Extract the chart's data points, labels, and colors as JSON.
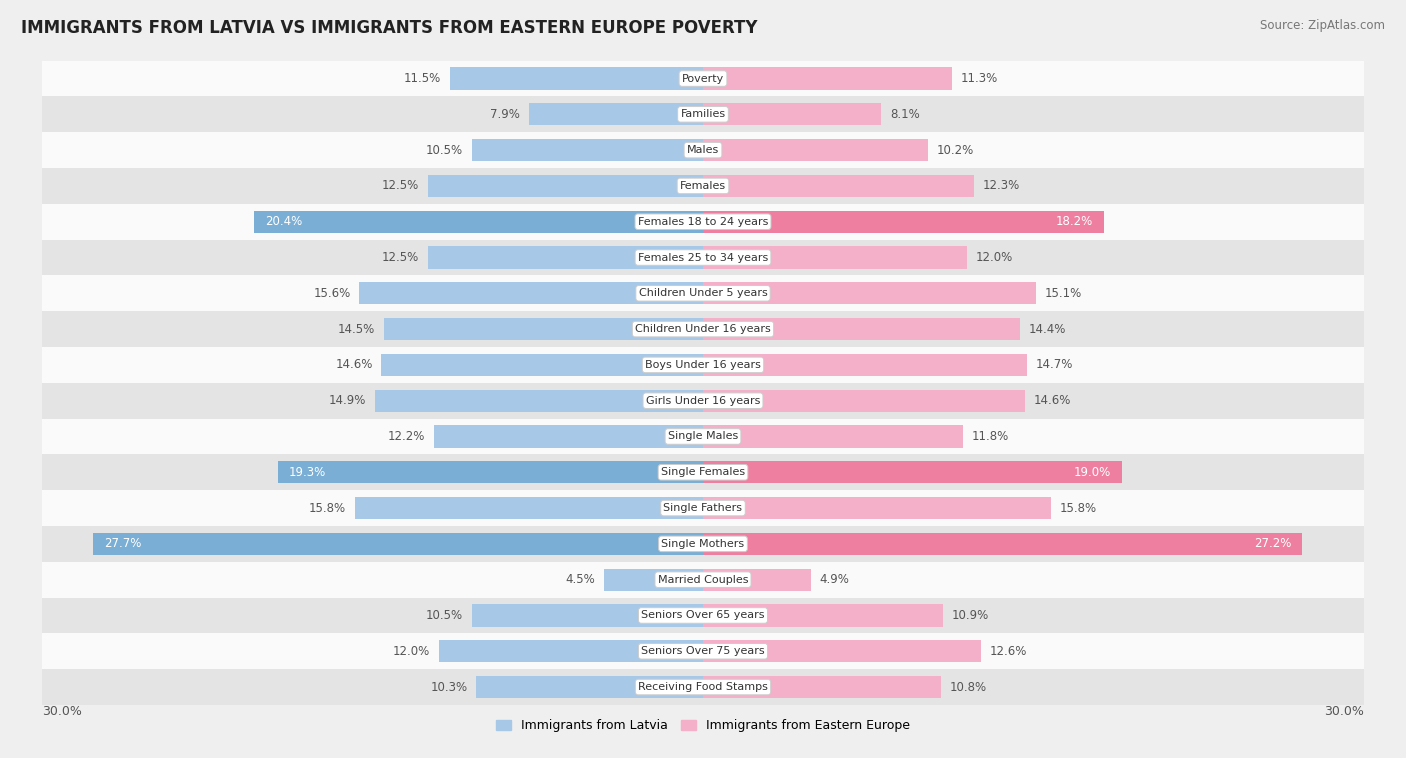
{
  "title": "IMMIGRANTS FROM LATVIA VS IMMIGRANTS FROM EASTERN EUROPE POVERTY",
  "source": "Source: ZipAtlas.com",
  "categories": [
    "Poverty",
    "Families",
    "Males",
    "Females",
    "Females 18 to 24 years",
    "Females 25 to 34 years",
    "Children Under 5 years",
    "Children Under 16 years",
    "Boys Under 16 years",
    "Girls Under 16 years",
    "Single Males",
    "Single Females",
    "Single Fathers",
    "Single Mothers",
    "Married Couples",
    "Seniors Over 65 years",
    "Seniors Over 75 years",
    "Receiving Food Stamps"
  ],
  "latvia_values": [
    11.5,
    7.9,
    10.5,
    12.5,
    20.4,
    12.5,
    15.6,
    14.5,
    14.6,
    14.9,
    12.2,
    19.3,
    15.8,
    27.7,
    4.5,
    10.5,
    12.0,
    10.3
  ],
  "eastern_values": [
    11.3,
    8.1,
    10.2,
    12.3,
    18.2,
    12.0,
    15.1,
    14.4,
    14.7,
    14.6,
    11.8,
    19.0,
    15.8,
    27.2,
    4.9,
    10.9,
    12.6,
    10.8
  ],
  "latvia_color_normal": "#a8c8e8",
  "latvia_color_highlight": "#7aaed4",
  "eastern_color_normal": "#f4b0c8",
  "eastern_color_highlight": "#ee7fa0",
  "bar_height": 0.62,
  "max_value": 30.0,
  "bg_color": "#efefef",
  "row_bg_light": "#fafafa",
  "row_bg_dark": "#e4e4e4",
  "label_color_normal": "#555555",
  "threshold_white_label": 17.5,
  "legend_latvia": "Immigrants from Latvia",
  "legend_eastern": "Immigrants from Eastern Europe"
}
